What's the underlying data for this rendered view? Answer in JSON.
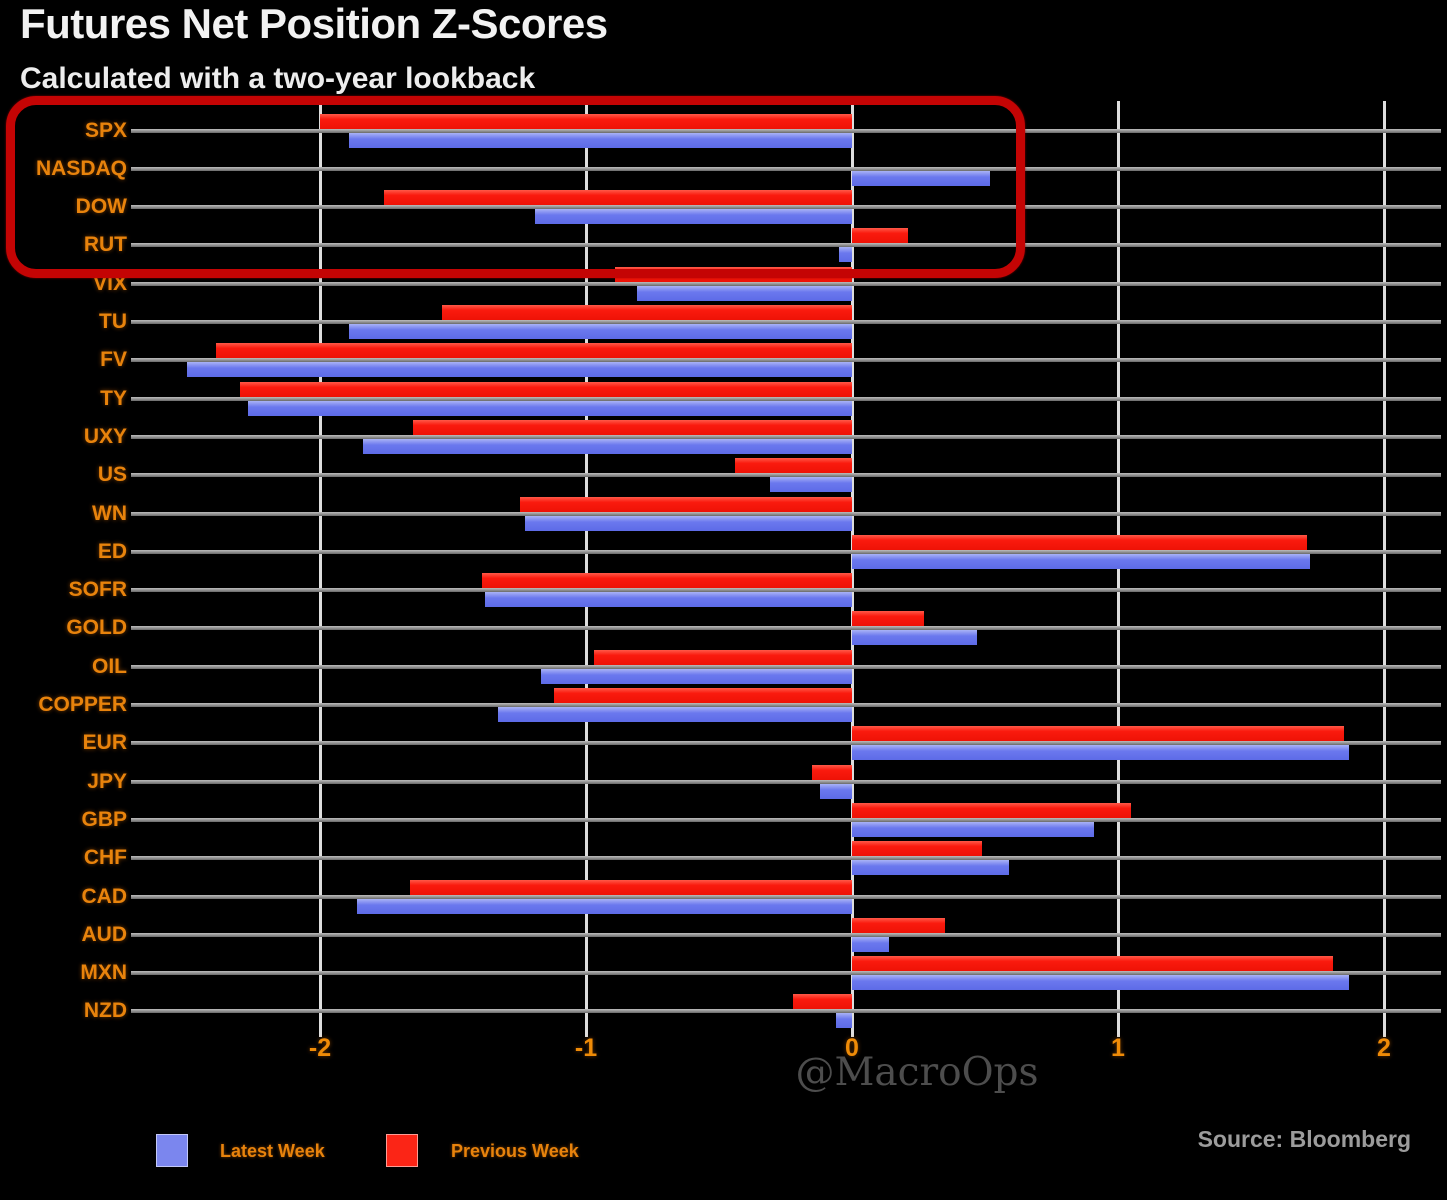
{
  "title": "Futures Net Position Z-Scores",
  "subtitle": "Calculated with a two-year lookback",
  "watermark": "@MacroOps",
  "source": "Source: Bloomberg",
  "legend": {
    "latest_label": "Latest Week",
    "previous_label": "Previous Week"
  },
  "colors": {
    "latest_blue": "#6b78ee",
    "previous_red": "#fa1a0e",
    "label_orange": "#e8830c",
    "annotation_red": "#c40404",
    "gridline": "#dedede",
    "background": "#000000"
  },
  "chart_data": {
    "type": "bar",
    "orientation": "horizontal",
    "title": "Futures Net Position Z-Scores",
    "subtitle": "Calculated with a two-year lookback",
    "xlabel": "",
    "ylabel": "",
    "xlim": [
      -2.68,
      2.22
    ],
    "xticks": [
      -2,
      -1,
      0,
      1,
      2
    ],
    "grid": "on",
    "legend_position": "bottom",
    "categories": [
      "SPX",
      "NASDAQ",
      "DOW",
      "RUT",
      "VIX",
      "TU",
      "FV",
      "TY",
      "UXY",
      "US",
      "WN",
      "ED",
      "SOFR",
      "GOLD",
      "OIL",
      "COPPER",
      "EUR",
      "JPY",
      "GBP",
      "CHF",
      "CAD",
      "AUD",
      "MXN",
      "NZD"
    ],
    "series": [
      {
        "name": "Latest Week",
        "color": "#6b78ee",
        "values": [
          -1.89,
          0.52,
          -1.19,
          -0.05,
          -0.81,
          -1.89,
          -2.5,
          -2.27,
          -1.84,
          -0.31,
          -1.23,
          1.72,
          -1.38,
          0.47,
          -1.17,
          -1.33,
          1.87,
          -0.12,
          0.91,
          0.59,
          -1.86,
          0.14,
          1.87,
          -0.06
        ]
      },
      {
        "name": "Previous Week",
        "color": "#fa1a0e",
        "values": [
          -2.0,
          0.0,
          -1.76,
          0.21,
          -0.89,
          -1.54,
          -2.39,
          -2.3,
          -1.65,
          -0.44,
          -1.25,
          1.71,
          -1.39,
          0.27,
          -0.97,
          -1.12,
          1.85,
          -0.15,
          1.05,
          0.49,
          -1.66,
          0.35,
          1.81,
          -0.22
        ]
      }
    ],
    "annotation": {
      "shape": "red-rounded-rectangle",
      "highlighted_categories": [
        "SPX",
        "NASDAQ",
        "DOW",
        "RUT"
      ]
    }
  }
}
